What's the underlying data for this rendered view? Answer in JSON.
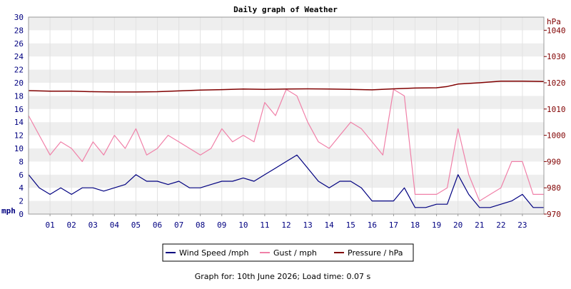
{
  "chart_data": {
    "type": "line",
    "title": "Daily graph of Weather",
    "footer": "Graph for: 10th June 2026; Load time: 0.07 s",
    "x": {
      "min": 0,
      "max": 24,
      "tick_labels": [
        "01",
        "02",
        "03",
        "04",
        "05",
        "06",
        "07",
        "08",
        "09",
        "10",
        "11",
        "12",
        "13",
        "14",
        "15",
        "16",
        "17",
        "18",
        "19",
        "20",
        "21",
        "22",
        "23"
      ],
      "tick_values": [
        1,
        2,
        3,
        4,
        5,
        6,
        7,
        8,
        9,
        10,
        11,
        12,
        13,
        14,
        15,
        16,
        17,
        18,
        19,
        20,
        21,
        22,
        23
      ]
    },
    "y_left": {
      "unit": "mph",
      "ylim": [
        0,
        30
      ],
      "ticks": [
        0,
        2,
        4,
        6,
        8,
        10,
        12,
        14,
        16,
        18,
        20,
        22,
        24,
        26,
        28,
        30
      ]
    },
    "y_right": {
      "unit": "hPa",
      "ylim": [
        970,
        1045
      ],
      "ticks": [
        970,
        980,
        990,
        1000,
        1010,
        1020,
        1030,
        1040
      ]
    },
    "grid": true,
    "legend": "bottom-center",
    "colors": {
      "wind": "#000080",
      "gust": "#f080a8",
      "pressure": "#800000",
      "left_axis": "#000080",
      "right_axis": "#800000",
      "band": "#eeeeee",
      "grid": "#cccccc"
    },
    "series": [
      {
        "name": "Wind Speed /mph",
        "axis": "left",
        "x": [
          0,
          0.5,
          1,
          1.5,
          2,
          2.5,
          3,
          3.5,
          4,
          4.5,
          5,
          5.5,
          6,
          6.5,
          7,
          7.5,
          8,
          8.5,
          9,
          9.5,
          10,
          10.5,
          11,
          11.5,
          12,
          12.5,
          13,
          13.5,
          14,
          14.5,
          15,
          15.5,
          16,
          16.5,
          17,
          17.5,
          18,
          18.5,
          19,
          19.5,
          20,
          20.5,
          21,
          21.5,
          22,
          22.5,
          23,
          23.5,
          24
        ],
        "values": [
          6,
          4,
          3,
          4,
          3,
          4,
          4,
          3.5,
          4,
          4.5,
          6,
          5,
          5,
          4.5,
          5,
          4,
          4,
          4.5,
          5,
          5,
          5.5,
          5,
          6,
          7,
          8,
          9,
          7,
          5,
          4,
          5,
          5,
          4,
          2,
          2,
          2,
          4,
          1,
          1,
          1.5,
          1.5,
          6,
          3,
          1,
          1,
          1.5,
          2,
          3,
          1,
          1
        ]
      },
      {
        "name": "Gust / mph",
        "axis": "left",
        "x": [
          0,
          0.5,
          1,
          1.5,
          2,
          2.5,
          3,
          3.5,
          4,
          4.5,
          5,
          5.5,
          6,
          6.5,
          7,
          7.5,
          8,
          8.5,
          9,
          9.5,
          10,
          10.5,
          11,
          11.5,
          12,
          12.5,
          13,
          13.5,
          14,
          14.5,
          15,
          15.5,
          16,
          16.5,
          17,
          17.5,
          18,
          18.5,
          19,
          19.5,
          20,
          20.5,
          21,
          21.5,
          22,
          22.5,
          23,
          23.5,
          24
        ],
        "values": [
          15,
          12,
          9,
          11,
          10,
          8,
          11,
          9,
          12,
          10,
          13,
          9,
          10,
          12,
          11,
          10,
          9,
          10,
          13,
          11,
          12,
          11,
          17,
          15,
          19,
          18,
          14,
          11,
          10,
          12,
          14,
          13,
          11,
          9,
          19,
          18,
          3,
          3,
          3,
          4,
          13,
          6,
          2,
          3,
          4,
          8,
          8,
          3,
          3
        ]
      },
      {
        "name": "Pressure / hPa",
        "axis": "right",
        "x": [
          0,
          1,
          2,
          3,
          4,
          5,
          6,
          7,
          8,
          9,
          10,
          11,
          12,
          13,
          14,
          15,
          16,
          17,
          18,
          19,
          19.5,
          20,
          21,
          22,
          23,
          24
        ],
        "values": [
          1017,
          1016.8,
          1016.8,
          1016.6,
          1016.5,
          1016.5,
          1016.6,
          1016.9,
          1017.2,
          1017.4,
          1017.6,
          1017.5,
          1017.6,
          1017.7,
          1017.6,
          1017.5,
          1017.3,
          1017.7,
          1018,
          1018.1,
          1018.6,
          1019.5,
          1020,
          1020.6,
          1020.6,
          1020.5
        ]
      }
    ]
  }
}
